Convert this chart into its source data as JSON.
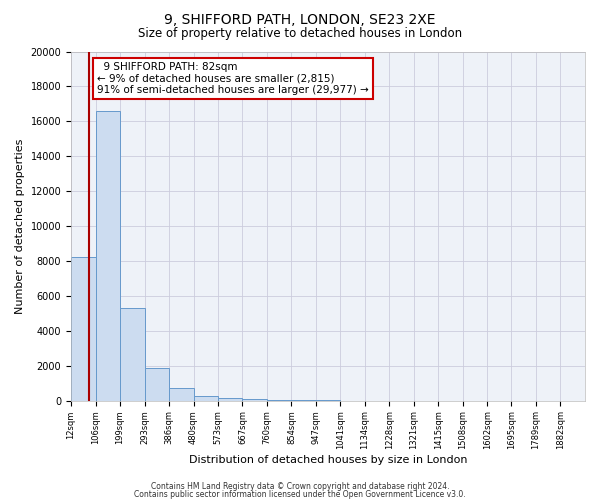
{
  "title": "9, SHIFFORD PATH, LONDON, SE23 2XE",
  "subtitle": "Size of property relative to detached houses in London",
  "xlabel": "Distribution of detached houses by size in London",
  "ylabel": "Number of detached properties",
  "bar_labels": [
    "12sqm",
    "106sqm",
    "199sqm",
    "293sqm",
    "386sqm",
    "480sqm",
    "573sqm",
    "667sqm",
    "760sqm",
    "854sqm",
    "947sqm",
    "1041sqm",
    "1134sqm",
    "1228sqm",
    "1321sqm",
    "1415sqm",
    "1508sqm",
    "1602sqm",
    "1695sqm",
    "1789sqm",
    "1882sqm"
  ],
  "bar_values": [
    8200,
    16600,
    5300,
    1850,
    750,
    280,
    150,
    70,
    50,
    20,
    10,
    0,
    0,
    0,
    0,
    0,
    0,
    0,
    0,
    0,
    0
  ],
  "bar_color": "#ccdcf0",
  "bar_edge_color": "#6699cc",
  "ylim": [
    0,
    20000
  ],
  "yticks": [
    0,
    2000,
    4000,
    6000,
    8000,
    10000,
    12000,
    14000,
    16000,
    18000,
    20000
  ],
  "property_line_color": "#aa0000",
  "annotation_title": "9 SHIFFORD PATH: 82sqm",
  "annotation_line1": "← 9% of detached houses are smaller (2,815)",
  "annotation_line2": "91% of semi-detached houses are larger (29,977) →",
  "annotation_box_color": "#ffffff",
  "annotation_box_edge": "#cc0000",
  "grid_color": "#ccccdd",
  "bg_color": "#ffffff",
  "plot_bg_color": "#eef2f8",
  "footer1": "Contains HM Land Registry data © Crown copyright and database right 2024.",
  "footer2": "Contains public sector information licensed under the Open Government Licence v3.0."
}
